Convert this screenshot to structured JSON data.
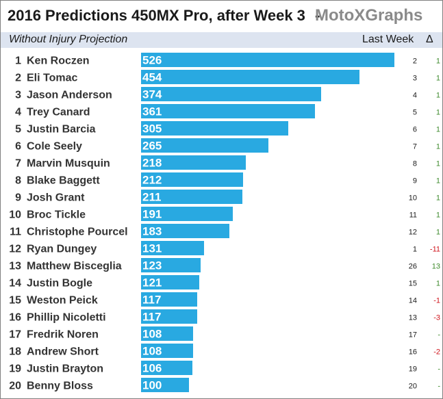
{
  "header": {
    "title": "2016 Predictions 450MX Pro, after Week 3",
    "separator": "-",
    "brand": "MotoXGraphs",
    "subtitle": "Without Injury Projection",
    "last_week_label": "Last Week",
    "delta_label": "Δ"
  },
  "colors": {
    "bar": "#29a9e1",
    "positive": "#3e8a2c",
    "negative": "#d0141c",
    "neutral": "#3e8a2c",
    "header_band": "#dde4f0"
  },
  "chart_data": {
    "type": "bar",
    "orientation": "horizontal",
    "title": "2016 Predictions 450MX Pro, after Week 3",
    "subtitle": "Without Injury Projection",
    "xlim": [
      0,
      526
    ],
    "grid": false,
    "legend": "none",
    "ranks": [
      1,
      2,
      3,
      4,
      5,
      6,
      7,
      8,
      9,
      10,
      11,
      12,
      13,
      14,
      15,
      16,
      17,
      18,
      19,
      20
    ],
    "categories": [
      "Ken Roczen",
      "Eli Tomac",
      "Jason Anderson",
      "Trey Canard",
      "Justin Barcia",
      "Cole Seely",
      "Marvin Musquin",
      "Blake Baggett",
      "Josh Grant",
      "Broc Tickle",
      "Christophe Pourcel",
      "Ryan Dungey",
      "Matthew Bisceglia",
      "Justin Bogle",
      "Weston Peick",
      "Phillip Nicoletti",
      "Fredrik Noren",
      "Andrew Short",
      "Justin Brayton",
      "Benny Bloss"
    ],
    "values": [
      526,
      454,
      374,
      361,
      305,
      265,
      218,
      212,
      211,
      191,
      183,
      131,
      123,
      121,
      117,
      117,
      108,
      108,
      106,
      100
    ],
    "last_week": [
      "2",
      "3",
      "4",
      "5",
      "6",
      "7",
      "8",
      "9",
      "10",
      "11",
      "12",
      "1",
      "26",
      "15",
      "14",
      "13",
      "17",
      "16",
      "19",
      "20"
    ],
    "delta": [
      "1",
      "1",
      "1",
      "1",
      "1",
      "1",
      "1",
      "1",
      "1",
      "1",
      "1",
      "-11",
      "13",
      "1",
      "-1",
      "-3",
      "-",
      "-2",
      "-",
      "-"
    ]
  }
}
